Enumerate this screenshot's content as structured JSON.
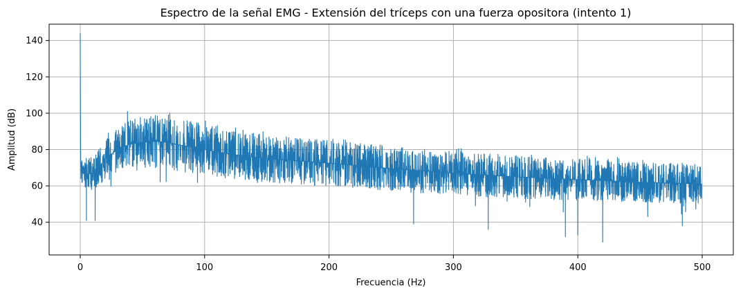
{
  "chart_data": {
    "type": "line",
    "title": "Espectro de la señal EMG - Extensión del tríceps con una fuerza opositora (intento 1)",
    "xlabel": "Frecuencia (Hz)",
    "ylabel": "Amplitud (dB)",
    "xlim": [
      -25,
      525
    ],
    "ylim": [
      22,
      149
    ],
    "xticks": [
      0,
      100,
      200,
      300,
      400,
      500
    ],
    "yticks": [
      40,
      60,
      80,
      100,
      120,
      140
    ],
    "grid": true,
    "series": [
      {
        "color": "#1f77b4",
        "envelope": {
          "x": [
            0.3,
            1,
            3,
            6,
            10,
            15,
            20,
            30,
            40,
            50,
            60,
            70,
            80,
            100,
            120,
            150,
            200,
            250,
            300,
            350,
            400,
            450,
            500
          ],
          "max": [
            81,
            74,
            73,
            75,
            76,
            80,
            86,
            92,
            96,
            98,
            99,
            99,
            97,
            94,
            91,
            88,
            85,
            82,
            79,
            77,
            75,
            73,
            72
          ],
          "min": [
            64,
            62,
            60,
            58,
            58,
            60,
            64,
            68,
            70,
            70,
            70,
            69,
            68,
            66,
            64,
            62,
            60,
            57,
            55,
            53,
            52,
            51,
            50
          ]
        },
        "dips": [
          [
            5,
            41
          ],
          [
            12,
            41
          ],
          [
            268,
            39
          ],
          [
            328,
            36
          ],
          [
            390,
            32
          ],
          [
            400,
            33
          ],
          [
            420,
            29
          ],
          [
            484,
            38
          ]
        ],
        "peaks": [
          [
            0,
            144
          ],
          [
            38,
            101
          ],
          [
            72,
            100
          ]
        ]
      }
    ]
  }
}
